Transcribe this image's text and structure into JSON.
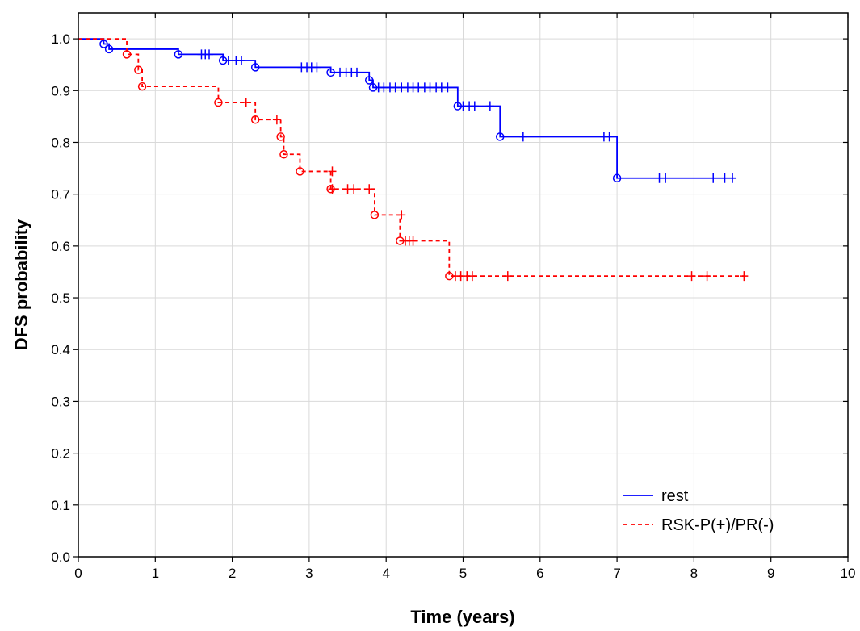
{
  "chart_data": {
    "type": "line",
    "subtype": "kaplan-meier step",
    "title": "",
    "xlabel": "Time (years)",
    "ylabel": "DFS probability",
    "xlim": [
      0,
      10
    ],
    "ylim": [
      0,
      1.05
    ],
    "xticks": [
      0,
      1,
      2,
      3,
      4,
      5,
      6,
      7,
      8,
      9,
      10
    ],
    "yticks": [
      "0.0",
      "0.1",
      "0.2",
      "0.3",
      "0.4",
      "0.5",
      "0.6",
      "0.7",
      "0.8",
      "0.9",
      "1.0"
    ],
    "grid": true,
    "legend_position": "bottom-right",
    "series": [
      {
        "name": "rest",
        "color": "#0000ff",
        "dash": "solid",
        "steps": [
          [
            0,
            1.0
          ],
          [
            0.33,
            0.99
          ],
          [
            0.4,
            0.98
          ],
          [
            1.3,
            0.97
          ],
          [
            1.88,
            0.958
          ],
          [
            2.3,
            0.945
          ],
          [
            3.28,
            0.935
          ],
          [
            3.78,
            0.92
          ],
          [
            3.83,
            0.906
          ],
          [
            4.93,
            0.87
          ],
          [
            5.48,
            0.811
          ],
          [
            7.0,
            0.731
          ],
          [
            8.55,
            0.731
          ]
        ],
        "events": [
          [
            0.33,
            0.99
          ],
          [
            0.4,
            0.98
          ],
          [
            1.3,
            0.97
          ],
          [
            1.88,
            0.958
          ],
          [
            2.3,
            0.945
          ],
          [
            3.28,
            0.935
          ],
          [
            3.78,
            0.92
          ],
          [
            3.83,
            0.906
          ],
          [
            4.93,
            0.87
          ],
          [
            5.48,
            0.811
          ],
          [
            7.0,
            0.731
          ]
        ],
        "censored": [
          [
            1.6,
            0.97
          ],
          [
            1.65,
            0.97
          ],
          [
            1.7,
            0.97
          ],
          [
            1.95,
            0.958
          ],
          [
            2.05,
            0.958
          ],
          [
            2.12,
            0.958
          ],
          [
            2.9,
            0.945
          ],
          [
            2.97,
            0.945
          ],
          [
            3.03,
            0.945
          ],
          [
            3.1,
            0.945
          ],
          [
            3.4,
            0.935
          ],
          [
            3.48,
            0.935
          ],
          [
            3.55,
            0.935
          ],
          [
            3.62,
            0.935
          ],
          [
            3.9,
            0.906
          ],
          [
            3.97,
            0.906
          ],
          [
            4.05,
            0.906
          ],
          [
            4.12,
            0.906
          ],
          [
            4.2,
            0.906
          ],
          [
            4.28,
            0.906
          ],
          [
            4.35,
            0.906
          ],
          [
            4.42,
            0.906
          ],
          [
            4.5,
            0.906
          ],
          [
            4.57,
            0.906
          ],
          [
            4.65,
            0.906
          ],
          [
            4.72,
            0.906
          ],
          [
            4.8,
            0.906
          ],
          [
            5.0,
            0.87
          ],
          [
            5.08,
            0.87
          ],
          [
            5.15,
            0.87
          ],
          [
            5.35,
            0.87
          ],
          [
            5.78,
            0.811
          ],
          [
            6.83,
            0.811
          ],
          [
            6.9,
            0.811
          ],
          [
            7.55,
            0.731
          ],
          [
            7.63,
            0.731
          ],
          [
            8.25,
            0.731
          ],
          [
            8.4,
            0.731
          ],
          [
            8.5,
            0.731
          ]
        ]
      },
      {
        "name": "RSK-P(+)/PR(-)",
        "color": "#ff0000",
        "dash": "dashed",
        "steps": [
          [
            0,
            1.0
          ],
          [
            0.63,
            0.97
          ],
          [
            0.78,
            0.94
          ],
          [
            0.83,
            0.908
          ],
          [
            1.82,
            0.877
          ],
          [
            2.3,
            0.844
          ],
          [
            2.63,
            0.811
          ],
          [
            2.67,
            0.777
          ],
          [
            2.88,
            0.744
          ],
          [
            3.28,
            0.71
          ],
          [
            3.85,
            0.66
          ],
          [
            4.18,
            0.61
          ],
          [
            4.82,
            0.542
          ],
          [
            8.65,
            0.542
          ]
        ],
        "events": [
          [
            0.63,
            0.97
          ],
          [
            0.78,
            0.94
          ],
          [
            0.83,
            0.908
          ],
          [
            1.82,
            0.877
          ],
          [
            2.3,
            0.844
          ],
          [
            2.63,
            0.811
          ],
          [
            2.67,
            0.777
          ],
          [
            2.88,
            0.744
          ],
          [
            3.28,
            0.71
          ],
          [
            3.85,
            0.66
          ],
          [
            4.18,
            0.61
          ],
          [
            4.82,
            0.542
          ]
        ],
        "censored": [
          [
            2.18,
            0.877
          ],
          [
            2.58,
            0.844
          ],
          [
            3.3,
            0.744
          ],
          [
            3.3,
            0.71
          ],
          [
            3.5,
            0.71
          ],
          [
            3.58,
            0.71
          ],
          [
            3.78,
            0.71
          ],
          [
            4.2,
            0.66
          ],
          [
            4.25,
            0.61
          ],
          [
            4.3,
            0.61
          ],
          [
            4.35,
            0.61
          ],
          [
            4.9,
            0.542
          ],
          [
            4.97,
            0.542
          ],
          [
            5.05,
            0.542
          ],
          [
            5.12,
            0.542
          ],
          [
            5.58,
            0.542
          ],
          [
            7.97,
            0.542
          ],
          [
            8.17,
            0.542
          ],
          [
            8.65,
            0.542
          ]
        ]
      }
    ]
  }
}
